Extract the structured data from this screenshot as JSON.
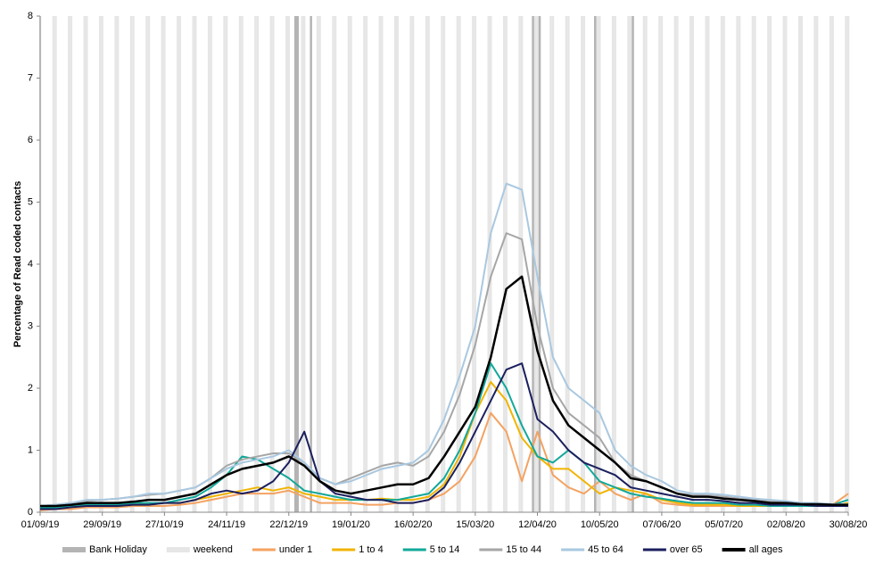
{
  "chart_data": {
    "type": "line",
    "y_label": "Percentage of Read coded contacts",
    "x": [
      "01/09/19",
      "08/09/19",
      "15/09/19",
      "22/09/19",
      "29/09/19",
      "06/10/19",
      "13/10/19",
      "20/10/19",
      "27/10/19",
      "03/11/19",
      "10/11/19",
      "17/11/19",
      "24/11/19",
      "01/12/19",
      "08/12/19",
      "15/12/19",
      "22/12/19",
      "29/12/19",
      "05/01/20",
      "12/01/20",
      "19/01/20",
      "26/01/20",
      "02/02/20",
      "09/02/20",
      "16/02/20",
      "23/02/20",
      "01/03/20",
      "08/03/20",
      "15/03/20",
      "22/03/20",
      "29/03/20",
      "05/04/20",
      "12/04/20",
      "19/04/20",
      "26/04/20",
      "03/05/20",
      "10/05/20",
      "17/05/20",
      "24/05/20",
      "31/05/20",
      "07/06/20",
      "14/06/20",
      "21/06/20",
      "28/06/20",
      "05/07/20",
      "12/07/20",
      "19/07/20",
      "26/07/20",
      "02/08/20",
      "09/08/20",
      "16/08/20",
      "23/08/20",
      "30/08/20"
    ],
    "xlim": [
      "01/09/19",
      "30/08/20"
    ],
    "xticks": [
      "01/09/19",
      "29/09/19",
      "27/10/19",
      "24/11/19",
      "22/12/19",
      "19/01/20",
      "16/02/20",
      "15/03/20",
      "12/04/20",
      "10/05/20",
      "07/06/20",
      "05/07/20",
      "02/08/20",
      "30/08/20"
    ],
    "ylim": [
      0,
      8
    ],
    "yticks": [
      0,
      1,
      2,
      3,
      4,
      5,
      6,
      7,
      8
    ],
    "bank_holidays": {
      "name": "Bank Holiday",
      "color": "#b4b4b4",
      "dates": [
        "25/12/19",
        "26/12/19",
        "01/01/20",
        "10/04/20",
        "13/04/20",
        "08/05/20",
        "25/05/20"
      ]
    },
    "weekends": {
      "name": "weekend",
      "color": "#e6e6e6"
    },
    "series": [
      {
        "name": "under 1",
        "color": "#f4a261",
        "values": [
          0.03,
          0.05,
          0.05,
          0.08,
          0.08,
          0.08,
          0.1,
          0.1,
          0.1,
          0.12,
          0.15,
          0.2,
          0.25,
          0.3,
          0.3,
          0.3,
          0.35,
          0.25,
          0.15,
          0.15,
          0.15,
          0.12,
          0.12,
          0.15,
          0.15,
          0.2,
          0.3,
          0.5,
          0.9,
          1.6,
          1.3,
          0.5,
          1.3,
          0.6,
          0.4,
          0.3,
          0.5,
          0.3,
          0.2,
          0.3,
          0.15,
          0.12,
          0.1,
          0.1,
          0.1,
          0.1,
          0.1,
          0.12,
          0.15,
          0.15,
          0.1,
          0.12,
          0.3
        ]
      },
      {
        "name": "1 to 4",
        "color": "#f0b400",
        "values": [
          0.05,
          0.06,
          0.08,
          0.1,
          0.1,
          0.1,
          0.12,
          0.12,
          0.15,
          0.15,
          0.2,
          0.25,
          0.3,
          0.35,
          0.4,
          0.35,
          0.4,
          0.3,
          0.25,
          0.2,
          0.2,
          0.2,
          0.22,
          0.2,
          0.2,
          0.25,
          0.45,
          0.9,
          1.6,
          2.1,
          1.8,
          1.2,
          0.9,
          0.7,
          0.7,
          0.5,
          0.3,
          0.4,
          0.35,
          0.3,
          0.2,
          0.15,
          0.12,
          0.12,
          0.12,
          0.1,
          0.1,
          0.1,
          0.1,
          0.1,
          0.1,
          0.1,
          0.15
        ]
      },
      {
        "name": "5 to 14",
        "color": "#12a89a",
        "values": [
          0.08,
          0.08,
          0.1,
          0.12,
          0.12,
          0.12,
          0.15,
          0.15,
          0.15,
          0.2,
          0.25,
          0.4,
          0.6,
          0.9,
          0.85,
          0.7,
          0.55,
          0.35,
          0.3,
          0.25,
          0.2,
          0.2,
          0.2,
          0.2,
          0.25,
          0.3,
          0.55,
          1.0,
          1.6,
          2.4,
          2.0,
          1.4,
          0.9,
          0.8,
          1.0,
          0.8,
          0.5,
          0.4,
          0.3,
          0.25,
          0.22,
          0.18,
          0.15,
          0.15,
          0.15,
          0.12,
          0.12,
          0.1,
          0.1,
          0.1,
          0.1,
          0.12,
          0.2
        ]
      },
      {
        "name": "15 to 44",
        "color": "#a6a6a6",
        "values": [
          0.1,
          0.12,
          0.15,
          0.18,
          0.2,
          0.22,
          0.25,
          0.28,
          0.3,
          0.35,
          0.4,
          0.55,
          0.75,
          0.85,
          0.9,
          0.95,
          0.95,
          0.8,
          0.55,
          0.45,
          0.55,
          0.65,
          0.75,
          0.8,
          0.75,
          0.9,
          1.3,
          1.9,
          2.7,
          3.8,
          4.5,
          4.4,
          3.0,
          2.0,
          1.6,
          1.4,
          1.2,
          0.8,
          0.6,
          0.5,
          0.4,
          0.3,
          0.28,
          0.27,
          0.25,
          0.22,
          0.2,
          0.18,
          0.16,
          0.15,
          0.14,
          0.13,
          0.12
        ]
      },
      {
        "name": "45 to 64",
        "color": "#a9c8e0",
        "values": [
          0.1,
          0.12,
          0.15,
          0.2,
          0.2,
          0.22,
          0.25,
          0.3,
          0.3,
          0.35,
          0.4,
          0.55,
          0.7,
          0.8,
          0.85,
          0.9,
          1.0,
          0.8,
          0.55,
          0.45,
          0.5,
          0.6,
          0.7,
          0.75,
          0.8,
          1.0,
          1.5,
          2.2,
          3.0,
          4.5,
          5.3,
          5.2,
          3.8,
          2.5,
          2.0,
          1.8,
          1.6,
          1.0,
          0.75,
          0.6,
          0.5,
          0.35,
          0.3,
          0.3,
          0.28,
          0.25,
          0.22,
          0.2,
          0.18,
          0.15,
          0.15,
          0.13,
          0.13
        ]
      },
      {
        "name": "over 65",
        "color": "#1b1f5e",
        "values": [
          0.05,
          0.05,
          0.08,
          0.1,
          0.1,
          0.1,
          0.12,
          0.12,
          0.15,
          0.15,
          0.2,
          0.3,
          0.35,
          0.3,
          0.35,
          0.5,
          0.8,
          1.3,
          0.5,
          0.3,
          0.25,
          0.2,
          0.2,
          0.15,
          0.15,
          0.2,
          0.4,
          0.8,
          1.3,
          1.8,
          2.3,
          2.4,
          1.5,
          1.3,
          1.0,
          0.8,
          0.7,
          0.6,
          0.4,
          0.35,
          0.3,
          0.25,
          0.2,
          0.2,
          0.18,
          0.15,
          0.15,
          0.12,
          0.12,
          0.12,
          0.1,
          0.1,
          0.1
        ]
      },
      {
        "name": "all ages",
        "color": "#000000",
        "values": [
          0.1,
          0.1,
          0.12,
          0.15,
          0.15,
          0.15,
          0.17,
          0.2,
          0.2,
          0.25,
          0.3,
          0.45,
          0.6,
          0.7,
          0.75,
          0.8,
          0.9,
          0.75,
          0.5,
          0.35,
          0.3,
          0.35,
          0.4,
          0.45,
          0.45,
          0.55,
          0.9,
          1.3,
          1.7,
          2.5,
          3.6,
          3.8,
          2.6,
          1.8,
          1.4,
          1.2,
          1.0,
          0.8,
          0.55,
          0.5,
          0.4,
          0.3,
          0.25,
          0.25,
          0.22,
          0.2,
          0.18,
          0.15,
          0.15,
          0.13,
          0.13,
          0.12,
          0.12
        ]
      }
    ]
  }
}
